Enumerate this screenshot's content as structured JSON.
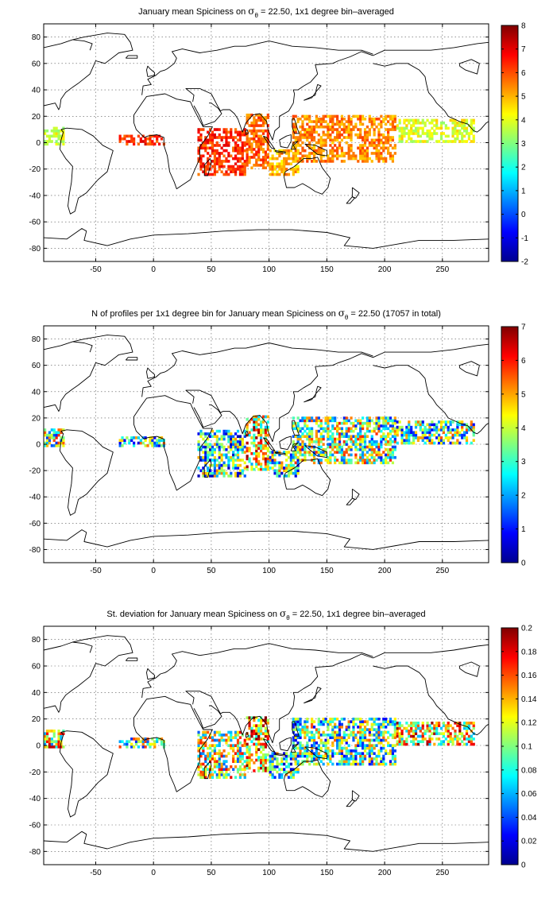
{
  "chart_data": [
    {
      "type": "heatmap",
      "title_prefix": "January mean Spiciness on",
      "title_symbol": "σ",
      "title_subscript": "θ",
      "title_suffix": " = 22.50, 1x1 degree bin–averaged",
      "xlim": [
        -95,
        290
      ],
      "ylim": [
        -90,
        90
      ],
      "x_ticks": [
        -50,
        0,
        50,
        100,
        150,
        200,
        250
      ],
      "y_ticks": [
        -80,
        -60,
        -40,
        -20,
        0,
        20,
        40,
        60,
        80
      ],
      "grid": true,
      "colorbar": {
        "min": -2,
        "max": 8,
        "ticks": [
          -2,
          -1,
          0,
          1,
          2,
          3,
          4,
          5,
          6,
          7,
          8
        ]
      },
      "regions": [
        {
          "name": "",
          "lon": [
            -95,
            -78
          ],
          "lat": [
            -2,
            12
          ],
          "value": 3.8
        },
        {
          "name": "",
          "lon": [
            -30,
            10
          ],
          "lat": [
            -2,
            6
          ],
          "value": 6.4
        },
        {
          "name": "",
          "lon": [
            38,
            80
          ],
          "lat": [
            -25,
            10
          ],
          "value": 6.3
        },
        {
          "name": "",
          "lon": [
            80,
            100
          ],
          "lat": [
            -20,
            22
          ],
          "value": 5.8
        },
        {
          "name": "",
          "lon": [
            100,
            125
          ],
          "lat": [
            -25,
            -5
          ],
          "value": 5.0
        },
        {
          "name": "",
          "lon": [
            120,
            210
          ],
          "lat": [
            -15,
            20
          ],
          "value": 5.4
        },
        {
          "name": "",
          "lon": [
            210,
            278
          ],
          "lat": [
            0,
            18
          ],
          "value": 4.0
        }
      ]
    },
    {
      "type": "heatmap",
      "title_prefix": "N of profiles per 1x1 degree bin for January mean Spiciness on",
      "title_symbol": "σ",
      "title_subscript": "θ",
      "title_suffix": " = 22.50 (17057 in total)",
      "xlim": [
        -95,
        290
      ],
      "ylim": [
        -90,
        90
      ],
      "x_ticks": [
        -50,
        0,
        50,
        100,
        150,
        200,
        250
      ],
      "y_ticks": [
        -80,
        -60,
        -40,
        -20,
        0,
        20,
        40,
        60,
        80
      ],
      "grid": true,
      "colorbar": {
        "min": 0,
        "max": 7,
        "ticks": [
          0,
          1,
          2,
          3,
          4,
          5,
          6,
          7
        ]
      },
      "regions": [
        {
          "name": "",
          "lon": [
            -95,
            -78
          ],
          "lat": [
            -2,
            12
          ],
          "value": 3.5
        },
        {
          "name": "",
          "lon": [
            -30,
            10
          ],
          "lat": [
            -2,
            6
          ],
          "value": 3.0
        },
        {
          "name": "",
          "lon": [
            38,
            80
          ],
          "lat": [
            -25,
            10
          ],
          "value": 2.8
        },
        {
          "name": "",
          "lon": [
            80,
            100
          ],
          "lat": [
            -20,
            22
          ],
          "value": 4.5
        },
        {
          "name": "",
          "lon": [
            100,
            125
          ],
          "lat": [
            -25,
            -5
          ],
          "value": 3.0
        },
        {
          "name": "",
          "lon": [
            120,
            210
          ],
          "lat": [
            -15,
            20
          ],
          "value": 3.5
        },
        {
          "name": "",
          "lon": [
            210,
            278
          ],
          "lat": [
            0,
            18
          ],
          "value": 3.2
        }
      ]
    },
    {
      "type": "heatmap",
      "title_prefix": "St. deviation for January mean Spiciness on",
      "title_symbol": "σ",
      "title_subscript": "θ",
      "title_suffix": " = 22.50, 1x1 degree bin–averaged",
      "xlim": [
        -95,
        290
      ],
      "ylim": [
        -90,
        90
      ],
      "x_ticks": [
        -50,
        0,
        50,
        100,
        150,
        200,
        250
      ],
      "y_ticks": [
        -80,
        -60,
        -40,
        -20,
        0,
        20,
        40,
        60,
        80
      ],
      "grid": true,
      "colorbar": {
        "min": 0,
        "max": 0.2,
        "ticks": [
          0,
          0.02,
          0.04,
          0.06,
          0.08,
          0.1,
          0.12,
          0.14,
          0.16,
          0.18,
          0.2
        ]
      },
      "regions": [
        {
          "name": "",
          "lon": [
            -95,
            -78
          ],
          "lat": [
            -2,
            12
          ],
          "value": 0.12
        },
        {
          "name": "",
          "lon": [
            -30,
            10
          ],
          "lat": [
            -2,
            6
          ],
          "value": 0.1
        },
        {
          "name": "",
          "lon": [
            38,
            80
          ],
          "lat": [
            -25,
            10
          ],
          "value": 0.11
        },
        {
          "name": "",
          "lon": [
            80,
            100
          ],
          "lat": [
            -20,
            22
          ],
          "value": 0.14
        },
        {
          "name": "",
          "lon": [
            100,
            125
          ],
          "lat": [
            -25,
            -5
          ],
          "value": 0.08
        },
        {
          "name": "",
          "lon": [
            120,
            210
          ],
          "lat": [
            -15,
            20
          ],
          "value": 0.09
        },
        {
          "name": "",
          "lon": [
            210,
            278
          ],
          "lat": [
            0,
            18
          ],
          "value": 0.13
        }
      ]
    }
  ]
}
